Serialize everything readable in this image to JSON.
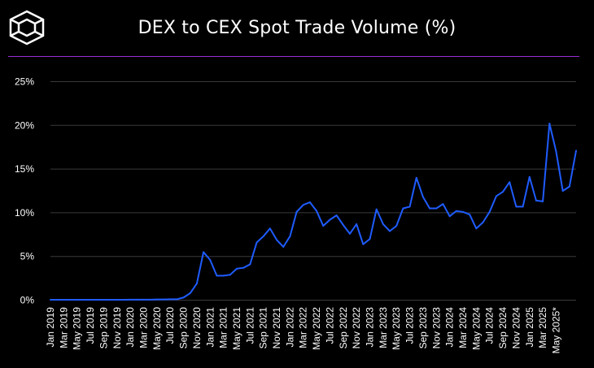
{
  "header": {
    "logo_icon": "cube-logo-icon",
    "title": "DEX to CEX Spot Trade Volume (%)",
    "rule_color": "#9b2bd6"
  },
  "chart_data": {
    "type": "line",
    "title": "DEX to CEX Spot Trade Volume (%)",
    "xlabel": "",
    "ylabel": "",
    "ylim": [
      0,
      25
    ],
    "y_ticks": [
      0,
      5,
      10,
      15,
      20,
      25
    ],
    "y_tick_labels": [
      "0%",
      "5%",
      "10%",
      "15%",
      "20%",
      "25%"
    ],
    "x_tick_labels": [
      "Jan 2019",
      "Mar 2019",
      "May 2019",
      "Jul 2019",
      "Sep 2019",
      "Nov 2019",
      "Jan 2020",
      "Mar 2020",
      "May 2020",
      "Jul 2020",
      "Sep 2020",
      "Nov 2020",
      "Jan 2021",
      "Mar 2021",
      "May 2021",
      "Jul 2021",
      "Sep 2021",
      "Nov 2021",
      "Jan 2022",
      "Mar 2022",
      "May 2022",
      "Jul 2022",
      "Sep 2022",
      "Nov 2022",
      "Jan 2023",
      "Mar 2023",
      "May 2023",
      "Jul 2023",
      "Sep 2023",
      "Nov 2023",
      "Jan 2024",
      "Mar 2024",
      "May 2024",
      "Jul 2024",
      "Sep 2024",
      "Nov 2024",
      "Jan 2025",
      "Mar 2025",
      "May 2025*"
    ],
    "grid": true,
    "line_color": "#1f5cff",
    "series": [
      {
        "name": "DEX to CEX Spot Trade Volume (%)",
        "values": [
          0.05,
          0.05,
          0.05,
          0.05,
          0.05,
          0.05,
          0.05,
          0.05,
          0.05,
          0.05,
          0.05,
          0.05,
          0.06,
          0.06,
          0.06,
          0.06,
          0.08,
          0.08,
          0.1,
          0.1,
          0.3,
          0.8,
          1.9,
          5.5,
          4.6,
          2.8,
          2.8,
          2.9,
          3.6,
          3.7,
          4.1,
          6.6,
          7.3,
          8.2,
          6.9,
          6.1,
          7.3,
          10.1,
          10.9,
          11.2,
          10.2,
          8.5,
          9.2,
          9.7,
          8.6,
          7.6,
          8.7,
          6.4,
          7.0,
          10.4,
          8.7,
          7.9,
          8.5,
          10.5,
          10.7,
          14.0,
          11.8,
          10.5,
          10.5,
          11.0,
          9.6,
          10.2,
          10.1,
          9.8,
          8.2,
          8.9,
          10.1,
          11.9,
          12.4,
          13.5,
          10.7,
          10.7,
          14.1,
          11.4,
          11.3,
          20.2,
          17.0,
          12.5,
          13.0,
          17.1
        ]
      }
    ]
  }
}
